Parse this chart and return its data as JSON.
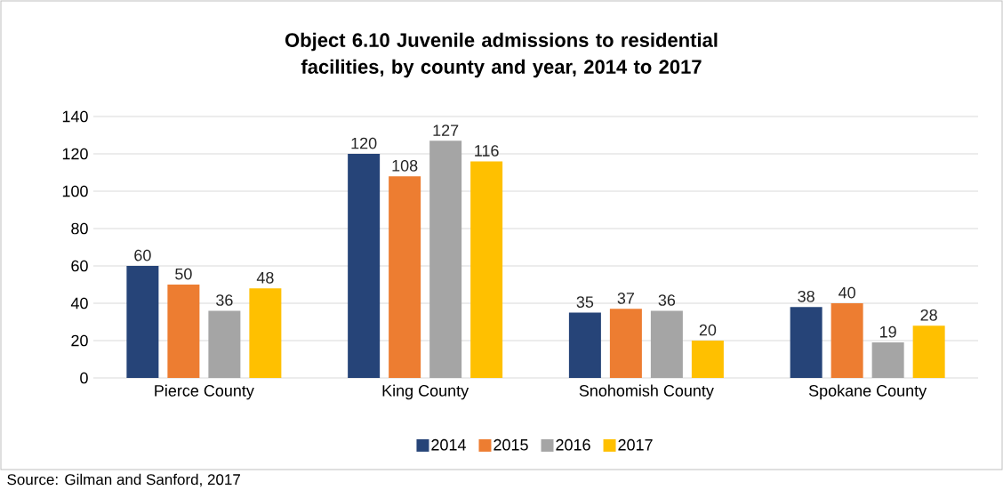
{
  "chart_data": {
    "type": "bar",
    "title": "Object 6.10 Juvenile admissions to residential facilities, by county and year, 2014 to 2017",
    "categories": [
      "Pierce County",
      "King County",
      "Snohomish County",
      "Spokane County"
    ],
    "series": [
      {
        "name": "2014",
        "color": "#264478",
        "values": [
          60,
          120,
          35,
          38
        ]
      },
      {
        "name": "2015",
        "color": "#ed7d31",
        "values": [
          50,
          108,
          37,
          40
        ]
      },
      {
        "name": "2016",
        "color": "#a5a5a5",
        "values": [
          36,
          127,
          36,
          19
        ]
      },
      {
        "name": "2017",
        "color": "#ffc000",
        "values": [
          48,
          116,
          20,
          28
        ]
      }
    ],
    "ylim": [
      0,
      140
    ],
    "yticks": [
      0,
      20,
      40,
      60,
      80,
      100,
      120,
      140
    ],
    "grid": "y",
    "legend": "bottom",
    "data_labels": true,
    "annotations": [
      "Source: Gilman and Sanford, 2017"
    ]
  }
}
